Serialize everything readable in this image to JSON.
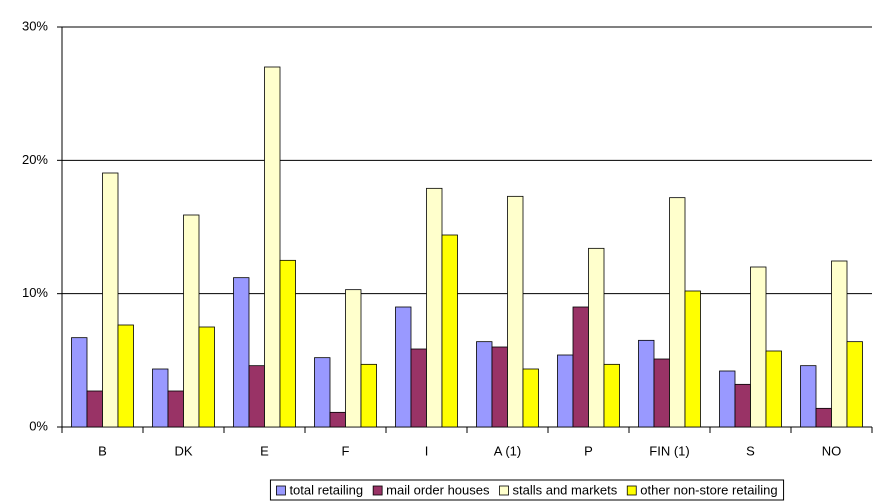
{
  "chart_data": {
    "type": "bar",
    "categories": [
      "B",
      "DK",
      "E",
      "F",
      "I",
      "A (1)",
      "P",
      "FIN (1)",
      "S",
      "NO"
    ],
    "series": [
      {
        "name": "total retailing",
        "color": "#9999ff",
        "values": [
          6.7,
          4.35,
          11.2,
          5.2,
          9.0,
          6.4,
          5.4,
          6.5,
          4.2,
          4.6
        ]
      },
      {
        "name": "mail order houses",
        "color": "#993366",
        "values": [
          2.7,
          2.7,
          4.6,
          1.1,
          5.85,
          6.0,
          9.0,
          5.1,
          3.2,
          1.4
        ]
      },
      {
        "name": "stalls and markets",
        "color": "#ffffcc",
        "values": [
          19.05,
          15.9,
          27.0,
          10.3,
          17.9,
          17.3,
          13.4,
          17.2,
          12.0,
          12.45
        ]
      },
      {
        "name": "other non-store retailing",
        "color": "#ffff00",
        "values": [
          7.65,
          7.5,
          12.5,
          4.7,
          14.4,
          4.35,
          4.7,
          10.2,
          5.7,
          6.4
        ]
      }
    ],
    "ylim": [
      0,
      30
    ],
    "yticks": [
      {
        "value": 0,
        "label": "0%"
      },
      {
        "value": 10,
        "label": "10%"
      },
      {
        "value": 20,
        "label": "20%"
      },
      {
        "value": 30,
        "label": "30%"
      }
    ],
    "grid": true,
    "legend": "bottom"
  }
}
